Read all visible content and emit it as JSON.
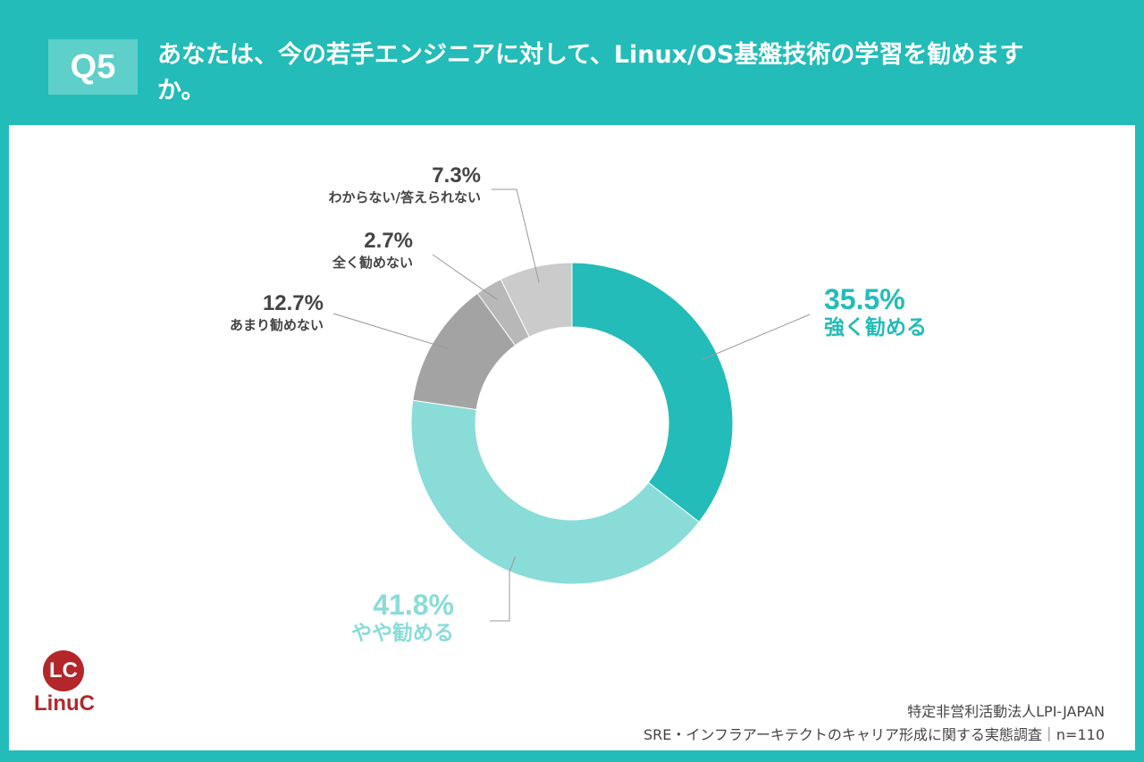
{
  "header": {
    "badge": "Q5",
    "question": "あなたは、今の若手エンジニアに対して、Linux/OS基盤技術の学習を勧めますか。"
  },
  "chart_data": {
    "type": "pie",
    "donut": true,
    "slices": [
      {
        "label": "強く勧める",
        "value": 35.5,
        "pct_label": "35.5%",
        "color": "#23bcb8"
      },
      {
        "label": "やや勧める",
        "value": 41.8,
        "pct_label": "41.8%",
        "color": "#8adcd8"
      },
      {
        "label": "あまり勧めない",
        "value": 12.7,
        "pct_label": "12.7%",
        "color": "#a3a3a3"
      },
      {
        "label": "全く勧めない",
        "value": 2.7,
        "pct_label": "2.7%",
        "color": "#b8b8b8"
      },
      {
        "label": "わからない/答えられない",
        "value": 7.3,
        "pct_label": "7.3%",
        "color": "#cbcbcb"
      }
    ]
  },
  "logo": {
    "mark": "LC",
    "name": "LinuC",
    "color": "#b3262a"
  },
  "source": {
    "org": "特定非営利活動法人LPI-JAPAN",
    "survey": "SRE・インフラアーキテクトのキャリア形成に関する実態調査｜n=110"
  },
  "colors": {
    "background": "#23bcb8",
    "panel": "#ffffff",
    "label_dark": "#444444"
  }
}
